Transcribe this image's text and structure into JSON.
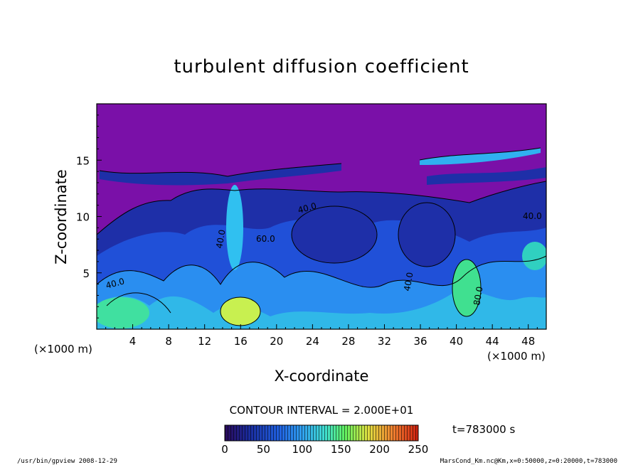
{
  "chart_data": {
    "type": "heatmap",
    "title": "turbulent diffusion coefficient",
    "xlabel": "X-coordinate",
    "ylabel": "Z-coordinate",
    "x_unit": "(×1000 m)",
    "x_ticks": [
      4,
      8,
      12,
      16,
      20,
      24,
      28,
      32,
      36,
      40,
      44,
      48
    ],
    "y_ticks": [
      5,
      10,
      15
    ],
    "xlim": [
      0,
      50
    ],
    "ylim": [
      0,
      20
    ],
    "contour_interval": "CONTOUR INTERVAL = 2.000E+01",
    "contour_labels": [
      "40.0",
      "40.0",
      "40.0",
      "40.0",
      "60.0",
      "40.0",
      "80.0"
    ],
    "colorbar": {
      "ticks": [
        0,
        50,
        100,
        150,
        200,
        250
      ],
      "range": [
        0,
        250
      ],
      "colors": [
        "#2a0a5a",
        "#1a2a9a",
        "#2060e0",
        "#30a0f0",
        "#40e0d0",
        "#60f060",
        "#e0e040",
        "#f08030",
        "#d02010"
      ]
    },
    "time_label": "t=783000 s",
    "footer_left": "/usr/bin/gpview   2008-12-29",
    "footer_right": "MarsCond_Km.nc@Km,x=0:50000,z=0:20000,t=783000",
    "colors": {
      "background_top": "#7a10a8",
      "low": "#1e2fa8",
      "mid": "#2a8ef0",
      "high": "#40f090",
      "peak": "#e8f050"
    }
  }
}
